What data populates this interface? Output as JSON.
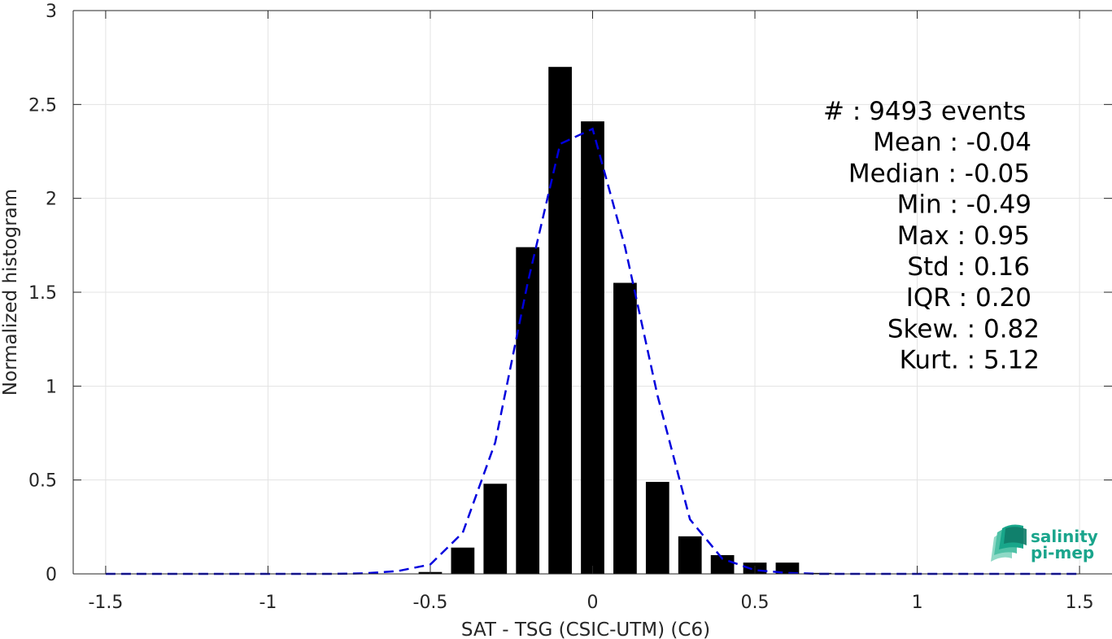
{
  "chart_data": {
    "type": "bar",
    "xlabel": "SAT - TSG (CSIC-UTM) (C6)",
    "ylabel": "Normalized histogram",
    "xlim": [
      -1.6,
      1.6
    ],
    "ylim": [
      0,
      3
    ],
    "xticks": [
      -1.5,
      -1,
      -0.5,
      0,
      0.5,
      1,
      1.5
    ],
    "xtick_labels": [
      "-1.5",
      "-1",
      "-0.5",
      "0",
      "0.5",
      "1",
      "1.5"
    ],
    "yticks": [
      0,
      0.5,
      1,
      1.5,
      2,
      2.5,
      3
    ],
    "ytick_labels": [
      "0",
      "0.5",
      "1",
      "1.5",
      "2",
      "2.5",
      "3"
    ],
    "grid": true,
    "bar_color": "#000000",
    "bars": [
      {
        "x": -0.5,
        "y": 0.01
      },
      {
        "x": -0.4,
        "y": 0.14
      },
      {
        "x": -0.3,
        "y": 0.48
      },
      {
        "x": -0.2,
        "y": 1.74
      },
      {
        "x": -0.1,
        "y": 2.7
      },
      {
        "x": 0.0,
        "y": 2.41
      },
      {
        "x": 0.1,
        "y": 1.55
      },
      {
        "x": 0.2,
        "y": 0.49
      },
      {
        "x": 0.3,
        "y": 0.2
      },
      {
        "x": 0.4,
        "y": 0.1
      },
      {
        "x": 0.5,
        "y": 0.06
      },
      {
        "x": 0.6,
        "y": 0.06
      },
      {
        "x": 0.7,
        "y": 0.005
      }
    ],
    "fit_line": {
      "color": "#0000dd",
      "style": "dashed",
      "points": [
        [
          -1.5,
          0
        ],
        [
          -1.4,
          0
        ],
        [
          -1.3,
          0
        ],
        [
          -1.2,
          0
        ],
        [
          -1.1,
          0
        ],
        [
          -1.0,
          0
        ],
        [
          -0.9,
          0
        ],
        [
          -0.8,
          0
        ],
        [
          -0.7,
          0.003
        ],
        [
          -0.6,
          0.015
        ],
        [
          -0.5,
          0.05
        ],
        [
          -0.4,
          0.22
        ],
        [
          -0.3,
          0.7
        ],
        [
          -0.2,
          1.55
        ],
        [
          -0.1,
          2.29
        ],
        [
          0.0,
          2.37
        ],
        [
          0.1,
          1.74
        ],
        [
          0.2,
          0.95
        ],
        [
          0.3,
          0.29
        ],
        [
          0.4,
          0.08
        ],
        [
          0.5,
          0.02
        ],
        [
          0.6,
          0.005
        ],
        [
          0.7,
          0
        ],
        [
          0.8,
          0
        ],
        [
          0.9,
          0
        ],
        [
          1.0,
          0
        ],
        [
          1.1,
          0
        ],
        [
          1.2,
          0
        ],
        [
          1.3,
          0
        ],
        [
          1.4,
          0
        ],
        [
          1.5,
          0
        ]
      ]
    },
    "stats": [
      {
        "label": "#  : 9493 events"
      },
      {
        "label": "Mean : -0.04"
      },
      {
        "label": "Median : -0.05"
      },
      {
        "label": "Min : -0.49"
      },
      {
        "label": "Max : 0.95"
      },
      {
        "label": "Std : 0.16"
      },
      {
        "label": "IQR : 0.20"
      },
      {
        "label": "Skew. : 0.82"
      },
      {
        "label": "Kurt. : 5.12"
      }
    ]
  },
  "logo": {
    "line1": "salinity",
    "line2": "pi-mep"
  }
}
